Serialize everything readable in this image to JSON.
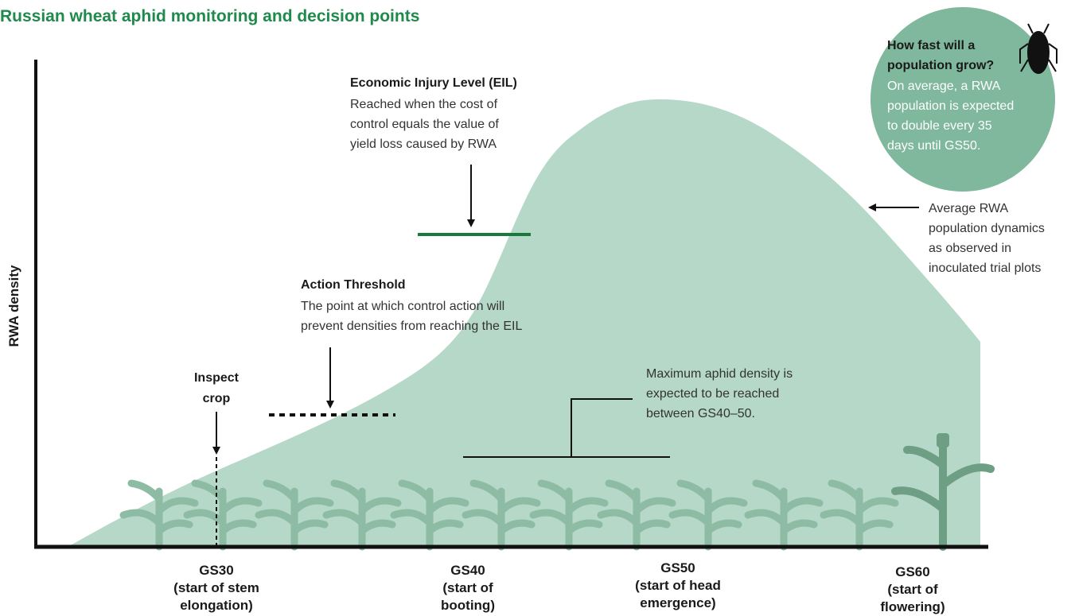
{
  "title": "Russian wheat aphid monitoring and decision points",
  "y_axis_label": "RWA density",
  "x_labels": [
    [
      "GS30",
      "(start of stem",
      "elongation)"
    ],
    [
      "GS40",
      "(start of",
      "booting)"
    ],
    [
      "GS50",
      "(start of head",
      "emergence)"
    ],
    [
      "GS60",
      "(start of",
      "flowering)"
    ]
  ],
  "annotations": {
    "eil": {
      "title": "Economic Injury Level (EIL)",
      "lines": [
        "Reached when the cost of",
        "control equals the value of",
        "yield loss caused by RWA"
      ]
    },
    "action_threshold": {
      "title": "Action Threshold",
      "lines": [
        "The point at which control action will",
        "prevent densities from reaching the EIL"
      ]
    },
    "inspect": {
      "lines": [
        "Inspect",
        "crop"
      ]
    },
    "max_density": {
      "lines": [
        "Maximum aphid density is",
        "expected to be reached",
        "between GS40–50."
      ]
    },
    "population": {
      "lines": [
        "Average RWA",
        "population dynamics",
        "as observed in",
        "inoculated trial plots"
      ]
    },
    "callout": {
      "title_lines": [
        "How fast will a",
        "population grow?"
      ],
      "lines": [
        "On average, a RWA",
        "population is expected",
        "to double every 35",
        "days until GS50."
      ]
    }
  }
}
